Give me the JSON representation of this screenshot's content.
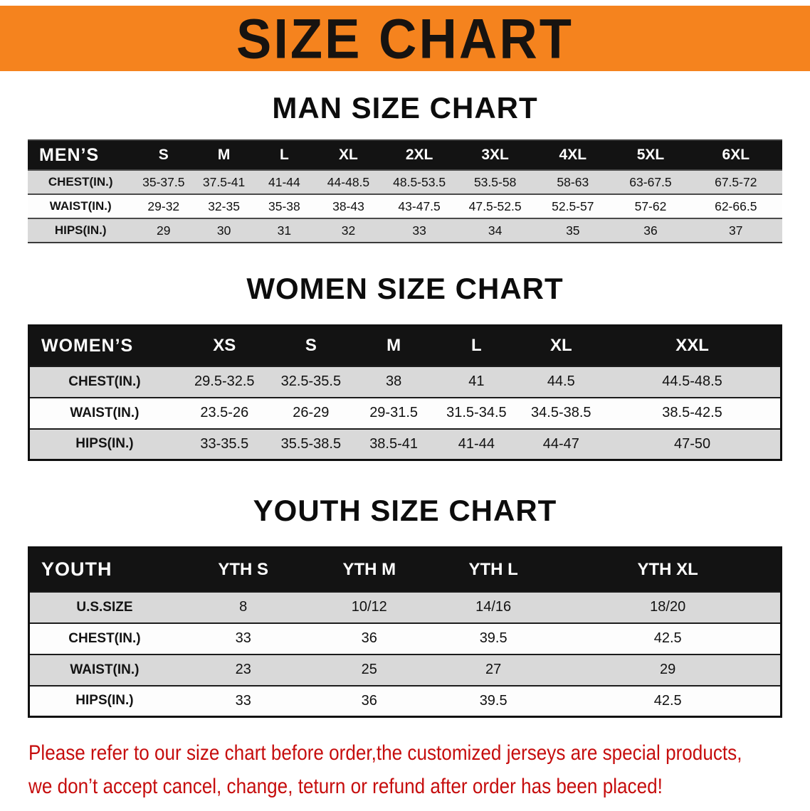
{
  "banner": {
    "title": "SIZE CHART"
  },
  "colors": {
    "banner_bg": "#f5831e",
    "table_header_bg": "#131313",
    "row_shade": "#d9d9d9",
    "disclaimer_red": "#c60d0d"
  },
  "sections": [
    {
      "heading": "MAN SIZE CHART",
      "table": {
        "corner": "MEN’S",
        "columns": [
          "S",
          "M",
          "L",
          "XL",
          "2XL",
          "3XL",
          "4XL",
          "5XL",
          "6XL"
        ],
        "rows": [
          {
            "label": "CHEST(IN.)",
            "values": [
              "35-37.5",
              "37.5-41",
              "41-44",
              "44-48.5",
              "48.5-53.5",
              "53.5-58",
              "58-63",
              "63-67.5",
              "67.5-72"
            ]
          },
          {
            "label": "WAIST(IN.)",
            "values": [
              "29-32",
              "32-35",
              "35-38",
              "38-43",
              "43-47.5",
              "47.5-52.5",
              "52.5-57",
              "57-62",
              "62-66.5"
            ]
          },
          {
            "label": "HIPS(IN.)",
            "values": [
              "29",
              "30",
              "31",
              "32",
              "33",
              "34",
              "35",
              "36",
              "37"
            ]
          }
        ]
      }
    },
    {
      "heading": "WOMEN SIZE CHART",
      "table": {
        "corner": "WOMEN’S",
        "columns": [
          "XS",
          "S",
          "M",
          "L",
          "XL",
          "XXL"
        ],
        "rows": [
          {
            "label": "CHEST(IN.)",
            "values": [
              "29.5-32.5",
              "32.5-35.5",
              "38",
              "41",
              "44.5",
              "44.5-48.5"
            ]
          },
          {
            "label": "WAIST(IN.)",
            "values": [
              "23.5-26",
              "26-29",
              "29-31.5",
              "31.5-34.5",
              "34.5-38.5",
              "38.5-42.5"
            ]
          },
          {
            "label": "HIPS(IN.)",
            "values": [
              "33-35.5",
              "35.5-38.5",
              "38.5-41",
              "41-44",
              "44-47",
              "47-50"
            ]
          }
        ]
      }
    },
    {
      "heading": "YOUTH SIZE CHART",
      "table": {
        "corner": "YOUTH",
        "columns": [
          "YTH S",
          "YTH M",
          "YTH L",
          "YTH XL"
        ],
        "rows": [
          {
            "label": "U.S.SIZE",
            "values": [
              "8",
              "10/12",
              "14/16",
              "18/20"
            ]
          },
          {
            "label": "CHEST(IN.)",
            "values": [
              "33",
              "36",
              "39.5",
              "42.5"
            ]
          },
          {
            "label": "WAIST(IN.)",
            "values": [
              "23",
              "25",
              "27",
              "29"
            ]
          },
          {
            "label": "HIPS(IN.)",
            "values": [
              "33",
              "36",
              "39.5",
              "42.5"
            ]
          }
        ]
      }
    }
  ],
  "disclaimer": {
    "line1": "Please refer to our size chart before order,the customized jerseys are special products,",
    "line2": "we don’t accept cancel, change, teturn or refund after order has been placed!"
  }
}
